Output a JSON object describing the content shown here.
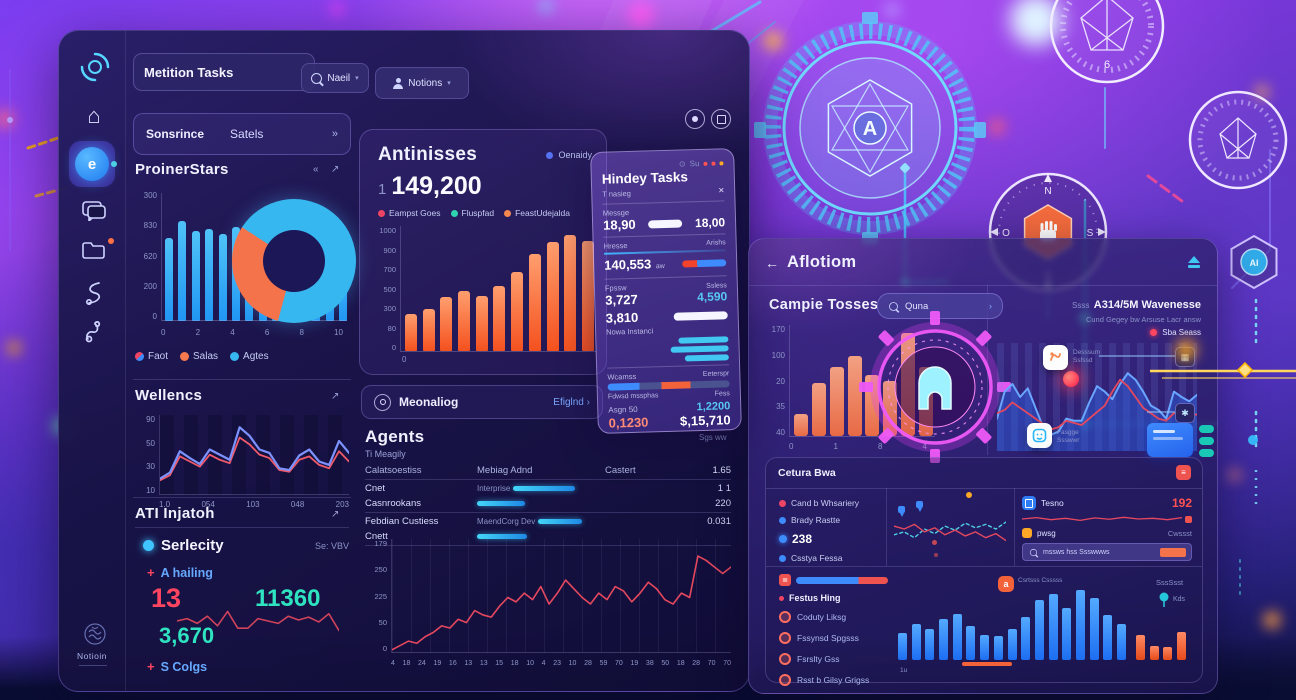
{
  "header": {
    "search_value": "Metition Tasks",
    "search_button": "Naeil",
    "user_button": "Notions",
    "caret": "▾"
  },
  "sidebar": {
    "brand": "Notioin",
    "active_label": "e"
  },
  "filter_bar": {
    "left": "Sonsrince",
    "right": "Satels",
    "arrow": "»"
  },
  "proinerstars": {
    "title": "ProinerStars",
    "collapse_icon": "«",
    "expand_icon": "↗",
    "y_ticks": [
      "300",
      "830",
      "620",
      "200",
      "0"
    ],
    "x_ticks": [
      "0",
      "2",
      "4",
      "6",
      "8",
      "10"
    ],
    "bars": [
      195,
      235,
      210,
      215,
      205,
      220,
      165,
      175,
      200,
      155,
      130,
      150,
      195,
      215
    ],
    "max": 300,
    "legend": [
      {
        "label": "Faot",
        "color": "#ef4565"
      },
      {
        "label": "Salas",
        "color": "#f77a4e"
      },
      {
        "label": "Agtes",
        "color": "#37b6f0"
      }
    ]
  },
  "wellecs": {
    "title": "Wellencs",
    "expand_icon": "↗",
    "y_ticks": [
      "90",
      "50",
      "30",
      "10"
    ],
    "x_ticks": [
      "1.0",
      "054",
      "103",
      "048",
      "203"
    ],
    "blue": [
      18,
      25,
      50,
      42,
      35,
      52,
      46,
      40,
      78,
      68,
      52,
      48,
      30,
      28,
      45,
      52,
      38,
      34,
      62,
      48
    ],
    "red": [
      16,
      22,
      44,
      38,
      32,
      46,
      40,
      36,
      66,
      58,
      46,
      42,
      28,
      26,
      40,
      44,
      34,
      30,
      50,
      38
    ],
    "max": 90
  },
  "ati": {
    "title": "ATI Injatoh",
    "expand_icon": "↗",
    "metric_label": "Serlecity",
    "metric_hint": "Se: VBV",
    "item_top": "A hailing",
    "plus_icon": "+",
    "value_red": "13",
    "value_teal": "11360",
    "value_teal2": "3,670",
    "item_bottom": "S Colgs",
    "spark": [
      50,
      55,
      45,
      60,
      40,
      70,
      35,
      35,
      55,
      50,
      45,
      60,
      52,
      58,
      48,
      65,
      30
    ],
    "max": 100
  },
  "antinisses": {
    "title": "Antinisses",
    "legend_top": "Oenaidy",
    "value_prefix": "1",
    "value": "149,200",
    "legend": [
      {
        "label": "Eampst Goes",
        "color": "#ef4565"
      },
      {
        "label": "Fluspfad",
        "color": "#2fd4b0"
      },
      {
        "label": "FeastUdejalda",
        "color": "#f4884e"
      }
    ],
    "y_ticks": [
      "1000",
      "900",
      "700",
      "500",
      "300",
      "80",
      "0"
    ],
    "x_tick": "0",
    "bars": [
      300,
      340,
      430,
      480,
      440,
      520,
      630,
      780,
      870,
      930,
      880
    ],
    "max": 1000
  },
  "meonaliog": {
    "label": "Meonaliog",
    "link": "Efiglnd",
    "chevron": "›"
  },
  "agents": {
    "title": "Agents",
    "subtitle": "Ti Meagily",
    "corner": "Sgs ww",
    "col1": "Calatsoestiss",
    "col2": "Mebiag Adnd",
    "col3": "Castert",
    "header_value": "1.65",
    "rows": [
      {
        "name": "Cnet",
        "tag": "Interprise",
        "value": "1 1"
      },
      {
        "name": "Casnrookans",
        "tag": "",
        "value": "220"
      },
      {
        "name": "Febdian Custiess",
        "tag": "MaendCorg Dev",
        "value": "0.031"
      },
      {
        "name": "Cnett",
        "tag": "",
        "value": ""
      }
    ],
    "bars_pct": [
      62,
      48,
      55,
      50
    ],
    "chart": {
      "y_ticks": [
        "179",
        "250",
        "225",
        "50",
        "0"
      ],
      "x_ticks": [
        "4",
        "18",
        "24",
        "19",
        "16",
        "13",
        "13",
        "15",
        "18",
        "10",
        "4",
        "23",
        "10",
        "28",
        "59",
        "70",
        "19",
        "38",
        "50",
        "18",
        "28",
        "70",
        "70"
      ],
      "values": [
        2,
        6,
        10,
        8,
        14,
        18,
        24,
        22,
        30,
        27,
        38,
        34,
        32,
        42,
        50,
        46,
        54,
        48,
        60,
        44,
        54,
        66,
        58,
        50,
        44,
        54,
        48,
        60,
        56,
        46,
        54,
        64,
        58,
        48,
        44,
        54,
        50,
        88,
        84,
        78,
        72,
        78
      ],
      "max": 100
    }
  },
  "hindey": {
    "title": "Hindey Tasks",
    "subtitle": "T nasieg",
    "menu_text": "Su",
    "close_icon": "×",
    "r1_label": "Messge",
    "r1_value": "18,90",
    "r1_right": "18,00",
    "r2_label": "Hresse",
    "r2_tag": "Arishs",
    "r2_value": "140,553",
    "r2_suffix": "aw",
    "r3_label": "Fpssw",
    "r3_value": "3,727",
    "r3_right_label": "Ssless",
    "r3_right": "4,590",
    "r4_value": "3,810",
    "r4_label": "Nowa Instanci",
    "r5_label": "Wcamss",
    "r5_right": "Eeterspr",
    "r6_label": "Fdwsd mssphas",
    "r6_right": "Fess",
    "r7_label": "Asgn 50",
    "r7_right": "1,2200",
    "r7_value": "0,1230",
    "r7_total": "$,15,710"
  },
  "panel2": {
    "back_icon": "←",
    "title": "Aflotiom"
  },
  "campie": {
    "title": "Campie Tosses",
    "button": "Quna",
    "chevron": "›",
    "y_ticks": [
      "170",
      "100",
      "20",
      "35",
      "40"
    ],
    "x_ticks": [
      "0",
      "1",
      "8",
      "4"
    ],
    "bars": [
      40,
      95,
      125,
      145,
      110,
      100,
      185,
      125
    ],
    "max": 200
  },
  "wave": {
    "prefix": "Ssss",
    "title": "A314/5M Wavenesse",
    "subtitle": "Cund Gegey bw Arsuse Lacr answ",
    "live": "Sba Seass",
    "icon1_label": "Desssum Ssfssd",
    "icon2_label": "Fasgge Ssswwr",
    "blue": [
      30,
      55,
      62,
      50,
      58,
      40,
      22,
      15,
      18,
      30,
      28,
      28,
      45,
      60,
      55,
      48,
      62,
      72,
      66,
      55,
      42,
      38,
      30,
      55,
      50,
      46,
      52
    ],
    "red": [
      35,
      38,
      45,
      40,
      35,
      30,
      25,
      20,
      22,
      28,
      26,
      24,
      30,
      36,
      42,
      55,
      66,
      60,
      50,
      40,
      35,
      30,
      28,
      35,
      35,
      32,
      34
    ],
    "max": 100
  },
  "cetura": {
    "title": "Cetura Bwa",
    "items": [
      {
        "label": "Cand b Whsariery"
      },
      {
        "label": "Brady Rastte"
      },
      {
        "label": "238"
      },
      {
        "label": "Csstya Fessa"
      }
    ],
    "cyan": [
      40,
      45,
      35,
      50,
      42,
      55,
      48,
      60,
      52,
      58,
      50,
      62
    ],
    "red": [
      55,
      50,
      58,
      45,
      52,
      40,
      48,
      38,
      45,
      35,
      42,
      30
    ],
    "max": 100
  },
  "tesno": {
    "label": "Tesno",
    "value": "192",
    "label2": "pwsg",
    "right": "Cwssst",
    "search": "mssws hss Ssswwws",
    "spark": [
      50,
      60,
      45,
      55,
      40,
      58,
      48,
      62,
      50,
      55,
      45,
      60
    ],
    "max": 100
  },
  "festus": {
    "title": "Festus Hing",
    "items": [
      "Coduty Liksg",
      "Fssynsd Spgsss",
      "Fsrslty Gss",
      "Rsst b Gilsy Grigss"
    ]
  },
  "hist": {
    "left_label": "Csrtsss Csssss",
    "right_label": "SssSsst",
    "tree_label": "Kds",
    "x_tick": "1u",
    "blue": [
      38,
      52,
      44,
      58,
      66,
      48,
      36,
      34,
      44,
      62,
      86,
      95,
      75,
      100,
      88,
      64,
      52
    ],
    "orange": [
      36,
      20,
      18,
      40
    ],
    "max": 100
  },
  "badges": {
    "compass_n": "N",
    "compass_s": "S",
    "compass_w": "O",
    "compass_e": "S",
    "badge_top_value": "6",
    "hex_value": "AI",
    "gear_letter": "A"
  },
  "colors": {
    "accent_cyan": "#37b6f0",
    "accent_orange": "#f4734a",
    "accent_red": "#ef4565",
    "accent_teal": "#2fe3c1",
    "accent_blue": "#2f7df6",
    "accent_yellow": "#ffd75e",
    "accent_magenta": "#e040fb"
  }
}
